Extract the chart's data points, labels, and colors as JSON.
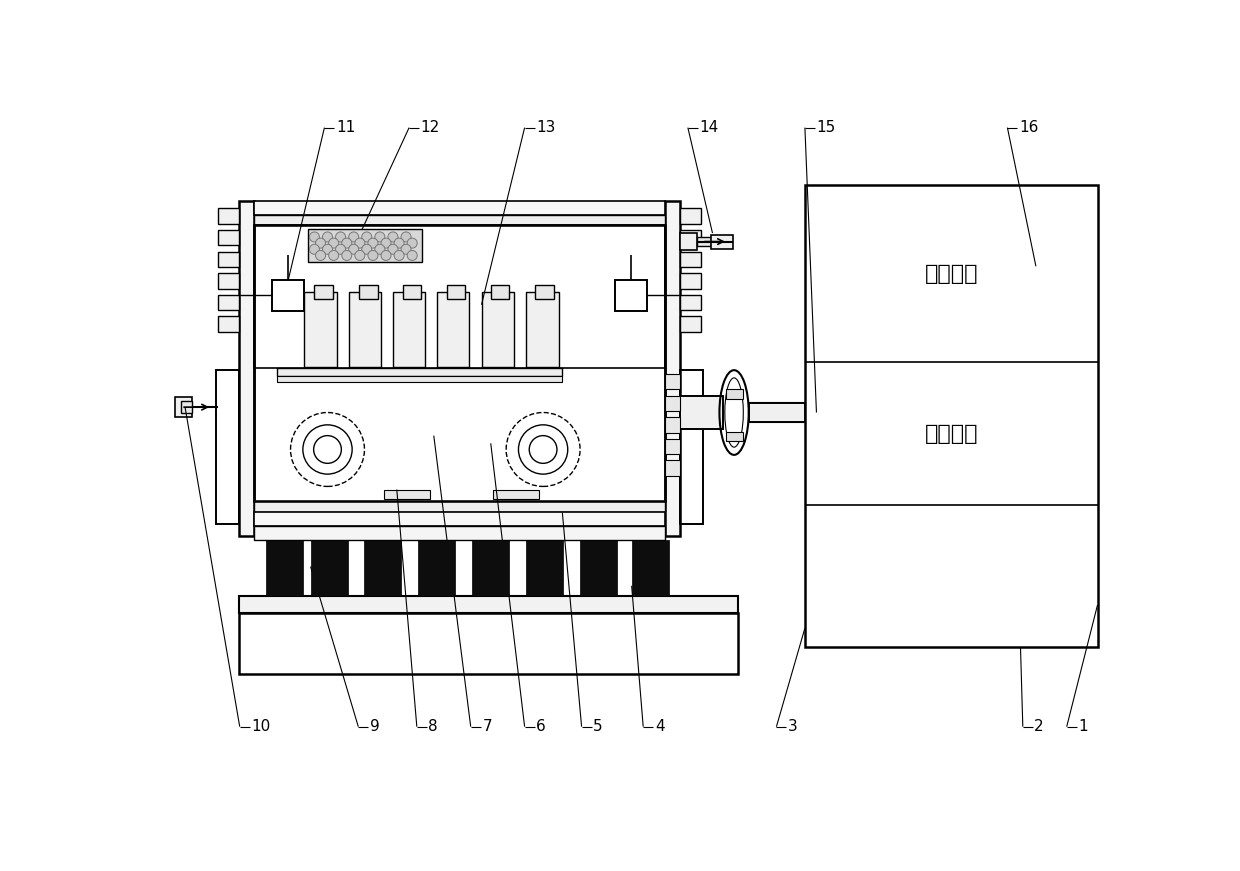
{
  "bg_color": "#ffffff",
  "lc": "#000000",
  "chinese_upper": "电控系统",
  "chinese_lower": "动力单元",
  "fs_label": 11,
  "fs_chinese": 16
}
